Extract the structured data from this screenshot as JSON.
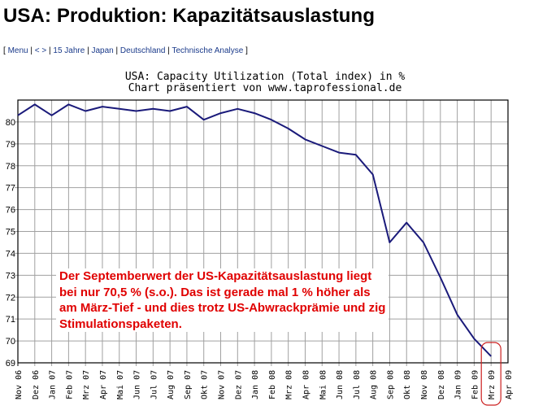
{
  "page": {
    "title": "USA: Produktion: Kapazitätsauslastung",
    "nav": {
      "open": "[",
      "close": "]",
      "separator": "|",
      "items": [
        "Menu",
        "< >",
        "15 Jahre",
        "Japan",
        "Deutschland",
        "Technische Analyse"
      ]
    }
  },
  "chart_data": {
    "type": "line",
    "title": "USA: Capacity Utilization (Total index) in %",
    "subtitle": "Chart präsentiert von www.taprofessional.de",
    "xlabel": "",
    "ylabel": "",
    "ylim": [
      69,
      81
    ],
    "yticks": [
      69,
      70,
      71,
      72,
      73,
      74,
      75,
      76,
      77,
      78,
      79,
      80
    ],
    "grid": true,
    "legend": "none",
    "line_color": "#1a1a7a",
    "categories": [
      "Nov 06",
      "Dez 06",
      "Jan 07",
      "Feb 07",
      "Mrz 07",
      "Apr 07",
      "Mai 07",
      "Jun 07",
      "Jul 07",
      "Aug 07",
      "Sep 07",
      "Okt 07",
      "Nov 07",
      "Dez 07",
      "Jan 08",
      "Feb 08",
      "Mrz 08",
      "Apr 08",
      "Mai 08",
      "Jun 08",
      "Jul 08",
      "Aug 08",
      "Sep 08",
      "Okt 08",
      "Nov 08",
      "Dez 08",
      "Jan 09",
      "Feb 09",
      "Mrz 09",
      "Apr 09"
    ],
    "series": [
      {
        "name": "Capacity Utilization (Total index)",
        "values": [
          80.3,
          80.8,
          80.3,
          80.8,
          80.5,
          80.7,
          80.6,
          80.5,
          80.6,
          80.5,
          80.7,
          80.1,
          80.4,
          80.6,
          80.4,
          80.1,
          79.7,
          79.2,
          78.9,
          78.6,
          78.5,
          77.6,
          74.5,
          75.4,
          74.5,
          72.9,
          71.2,
          70.1,
          69.3,
          null
        ]
      }
    ],
    "highlight": {
      "category": "Mrz 09",
      "shape": "rounded-rectangle",
      "color": "#cc2020"
    },
    "annotation": {
      "color": "#e00000",
      "lines": [
        "Der Septemberwert der US-Kapazitätsauslastung liegt",
        "bei nur 70,5 % (s.o.). Das ist gerade mal 1 % höher als",
        "am März-Tief - und dies trotz US-Abwrackprämie und zig",
        "Stimulationspaketen."
      ]
    }
  }
}
